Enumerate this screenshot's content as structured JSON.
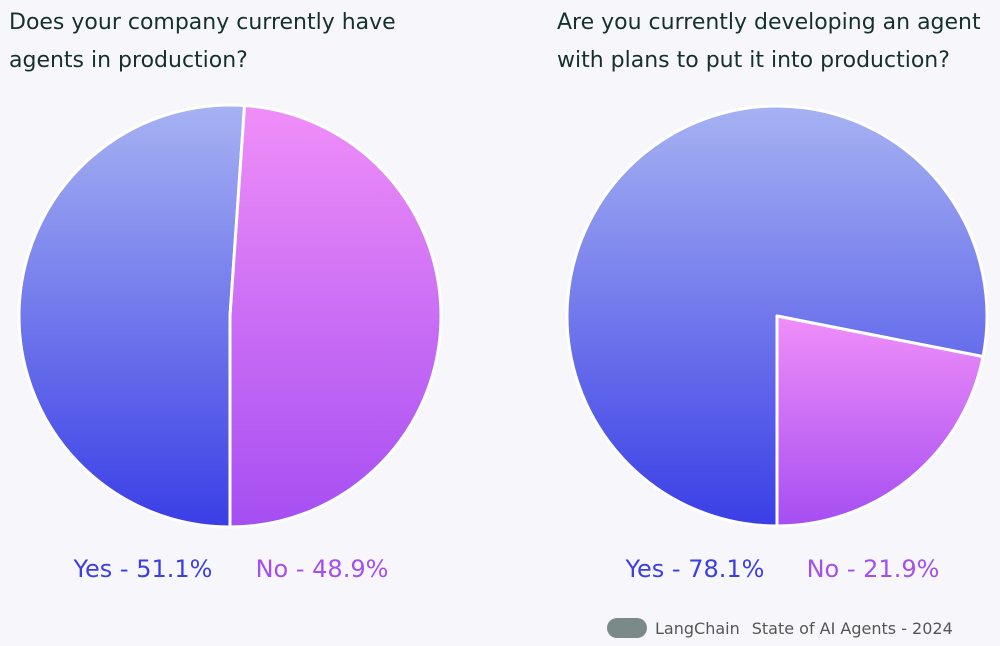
{
  "chart_data": [
    {
      "type": "pie",
      "title": "Does your company currently have agents in production?",
      "values": [
        51.1,
        48.9
      ],
      "value_labels": [
        "Yes - 51.1%",
        "No - 48.9%"
      ],
      "colors": [
        "#3a3ee6",
        "#a54ef2"
      ]
    },
    {
      "type": "pie",
      "title": "Are you currently developing an agent with plans to put it into production?",
      "values": [
        78.1,
        21.9
      ],
      "value_labels": [
        "Yes - 78.1%",
        "No - 21.9%"
      ],
      "colors": [
        "#3a3ee6",
        "#a54ef2"
      ]
    }
  ],
  "footer": {
    "brand": "LangChain",
    "source": "State of AI Agents - 2024"
  }
}
